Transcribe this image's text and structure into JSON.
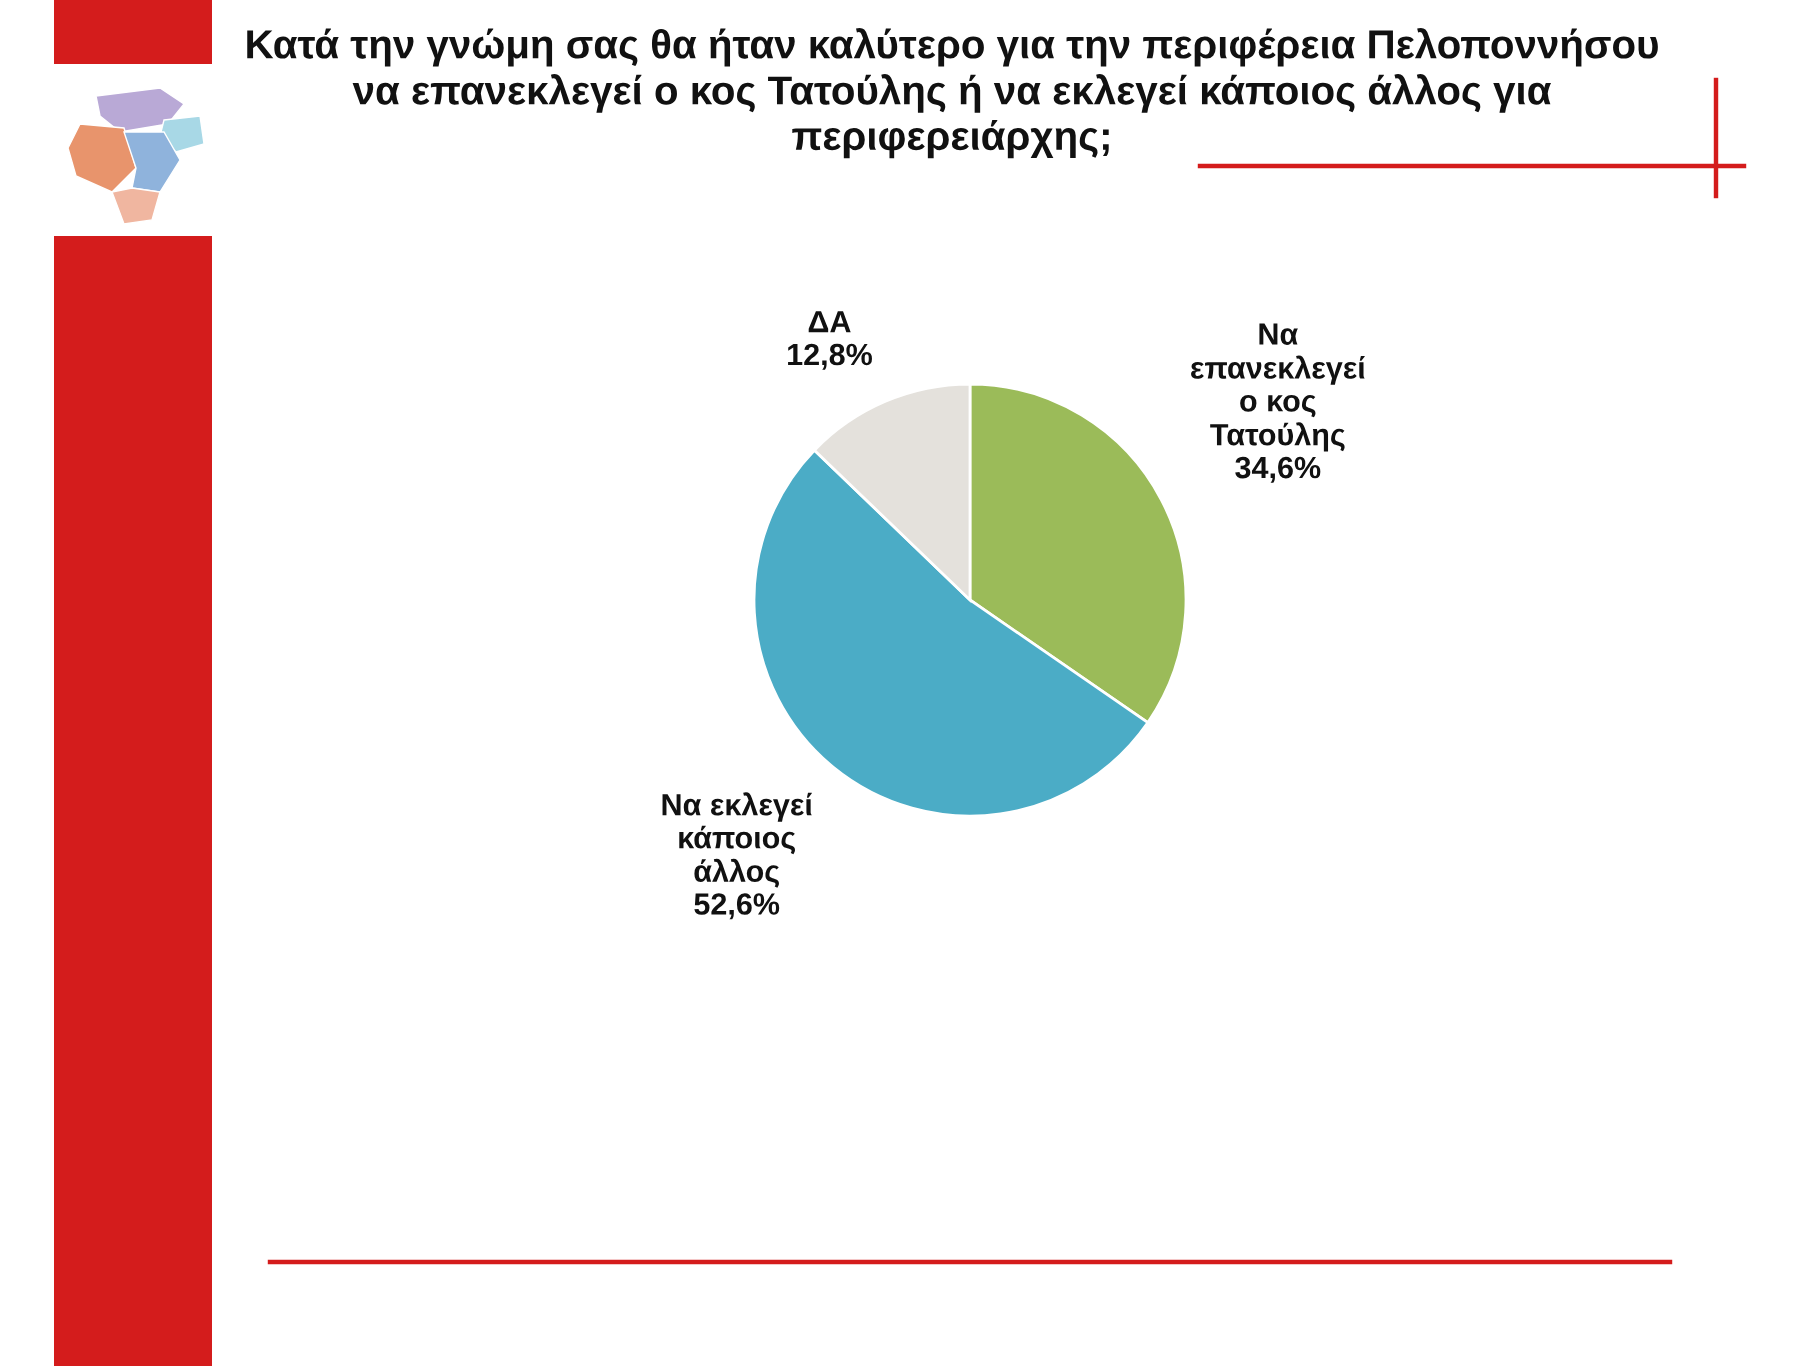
{
  "chart_data": {
    "type": "pie",
    "title": "Κατά την γνώμη σας θα ήταν καλύτερο για την περιφέρεια Πελοποννήσου\nνα επανεκλεγεί ο κος Τατούλης ή να εκλεγεί κάποιος άλλος για\nπεριφερειάρχης;",
    "categories": [
      "Να\nεπανεκλεγεί\nο κος\nΤατούλης",
      "Να εκλεγεί\nκάποιος\nάλλος",
      "ΔΑ"
    ],
    "values": [
      34.6,
      52.6,
      12.8
    ],
    "colors": [
      "#9bbb59",
      "#4bacc6",
      "#e4e1dc"
    ],
    "value_labels": [
      "34,6%",
      "52,6%",
      "12,8%"
    ]
  }
}
